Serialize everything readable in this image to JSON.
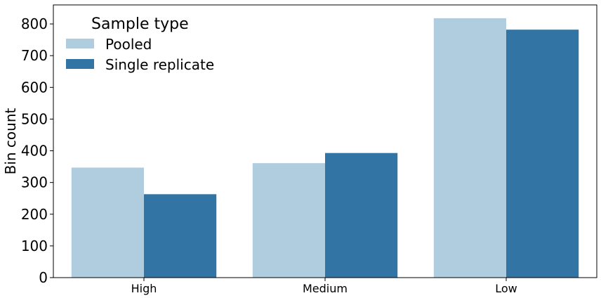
{
  "chart_data": {
    "type": "bar",
    "categories": [
      "High",
      "Medium",
      "Low"
    ],
    "series": [
      {
        "name": "Pooled",
        "values": [
          347,
          361,
          818
        ],
        "color": "#b0cde0"
      },
      {
        "name": "Single replicate",
        "values": [
          263,
          393,
          782
        ],
        "color": "#3275a4"
      }
    ],
    "title": "",
    "xlabel": "",
    "ylabel": "Bin count",
    "ylim": [
      0,
      860
    ],
    "yticks": [
      0,
      100,
      200,
      300,
      400,
      500,
      600,
      700,
      800
    ],
    "grid": false,
    "legend": {
      "title": "Sample type",
      "placement": "top-left"
    }
  }
}
